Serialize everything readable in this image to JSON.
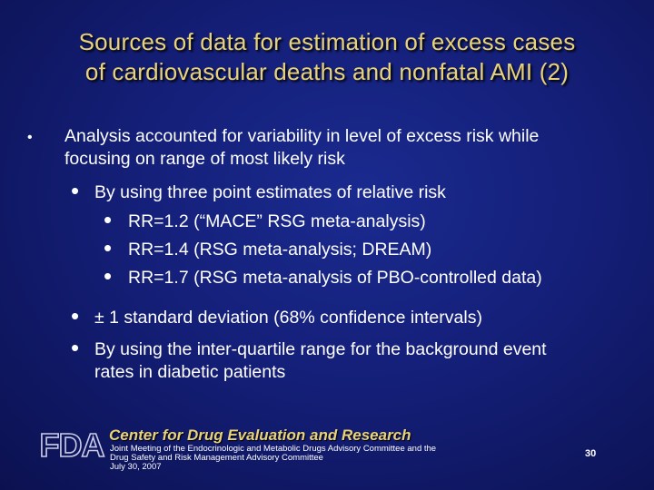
{
  "slide": {
    "title_line1": "Sources of data for estimation of excess cases",
    "title_line2": "of cardiovascular deaths and nonfatal AMI (2)",
    "bullet_char": "•",
    "level1": {
      "line1": "Analysis accounted for variability in level of excess risk while",
      "line2": "focusing on range of most likely risk"
    },
    "level2_a": "By using three point estimates of relative risk",
    "level3": [
      "RR=1.2 (“MACE” RSG meta-analysis)",
      "RR=1.4 (RSG meta-analysis; DREAM)",
      "RR=1.7 (RSG meta-analysis of PBO-controlled data)"
    ],
    "level2_b": "± 1 standard deviation (68% confidence intervals)",
    "level2_c": {
      "line1": "By using the inter-quartile range for the background event",
      "line2": "rates in diabetic patients"
    }
  },
  "footer": {
    "logo_text": "FDA",
    "org": "Center for Drug Evaluation and Research",
    "meeting_line1": "Joint Meeting of the Endocrinologic and Metabolic Drugs Advisory Committee and the",
    "meeting_line2": "Drug Safety and Risk Management Advisory Committee",
    "meeting_line3": "July 30, 2007",
    "page_number": "30"
  },
  "colors": {
    "title": "#e8d27a",
    "background": "#141f78",
    "text": "#ffffff"
  }
}
